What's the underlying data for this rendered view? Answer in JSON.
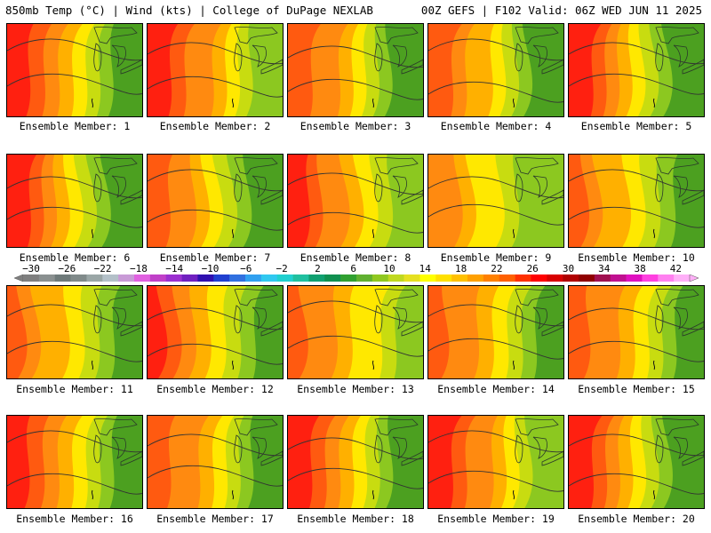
{
  "header": {
    "left": "850mb Temp (°C) | Wind (kts) | College of DuPage NEXLAB",
    "right": "00Z GEFS | F102 Valid: 06Z WED JUN 11 2025"
  },
  "members": [
    {
      "label": "Ensemble Member: 1",
      "west": 25,
      "east": 8
    },
    {
      "label": "Ensemble Member: 2",
      "west": 27,
      "east": 9
    },
    {
      "label": "Ensemble Member: 3",
      "west": 24,
      "east": 8
    },
    {
      "label": "Ensemble Member: 4",
      "west": 23,
      "east": 7
    },
    {
      "label": "Ensemble Member: 5",
      "west": 25,
      "east": 8
    },
    {
      "label": "Ensemble Member: 6",
      "west": 25,
      "east": 7
    },
    {
      "label": "Ensemble Member: 7",
      "west": 24,
      "east": 7
    },
    {
      "label": "Ensemble Member: 8",
      "west": 26,
      "east": 10
    },
    {
      "label": "Ensemble Member: 9",
      "west": 21,
      "east": 9
    },
    {
      "label": "Ensemble Member: 10",
      "west": 23,
      "east": 7
    },
    {
      "label": "Ensemble Member: 11",
      "west": 23,
      "east": 8
    },
    {
      "label": "Ensemble Member: 12",
      "west": 25,
      "east": 7
    },
    {
      "label": "Ensemble Member: 13",
      "west": 23,
      "east": 9
    },
    {
      "label": "Ensemble Member: 14",
      "west": 24,
      "east": 7
    },
    {
      "label": "Ensemble Member: 15",
      "west": 24,
      "east": 8
    },
    {
      "label": "Ensemble Member: 16",
      "west": 26,
      "east": 7
    },
    {
      "label": "Ensemble Member: 17",
      "west": 24,
      "east": 7
    },
    {
      "label": "Ensemble Member: 18",
      "west": 25,
      "east": 7
    },
    {
      "label": "Ensemble Member: 19",
      "west": 27,
      "east": 9
    },
    {
      "label": "Ensemble Member: 20",
      "west": 25,
      "east": 7
    }
  ],
  "colorbar": {
    "tick_labels": [
      "−30",
      "−26",
      "−22",
      "−18",
      "−14",
      "−10",
      "−6",
      "−2",
      "2",
      "6",
      "10",
      "14",
      "18",
      "22",
      "26",
      "30",
      "34",
      "38",
      "42"
    ],
    "colors": [
      "#7f7f7f",
      "#8a9090",
      "#6f7a7a",
      "#808a8a",
      "#9aa6a6",
      "#b3c0c8",
      "#c89ad6",
      "#e060e0",
      "#c040c8",
      "#9b30d0",
      "#7020c0",
      "#3010b0",
      "#2040d0",
      "#3070e0",
      "#30a0f0",
      "#30c8f0",
      "#20d0d0",
      "#20c0a0",
      "#10a070",
      "#109050",
      "#30a030",
      "#60b030",
      "#90c820",
      "#c0d820",
      "#e6e020",
      "#ffff00",
      "#ffe000",
      "#ffc000",
      "#ffa000",
      "#ff8000",
      "#ff6000",
      "#ff3000",
      "#ff0000",
      "#d80000",
      "#b00000",
      "#900000",
      "#a01050",
      "#c01090",
      "#e010c0",
      "#ff40e0",
      "#ff80f0",
      "#ffb0f8"
    ]
  },
  "colors": {
    "warm": "#ff2010",
    "hot": "#ff5a10",
    "orange": "#ff8a10",
    "amber": "#ffb000",
    "yellow": "#ffe800",
    "lime": "#c8dc10",
    "green": "#8cc820",
    "dkgreen": "#4ca020"
  }
}
